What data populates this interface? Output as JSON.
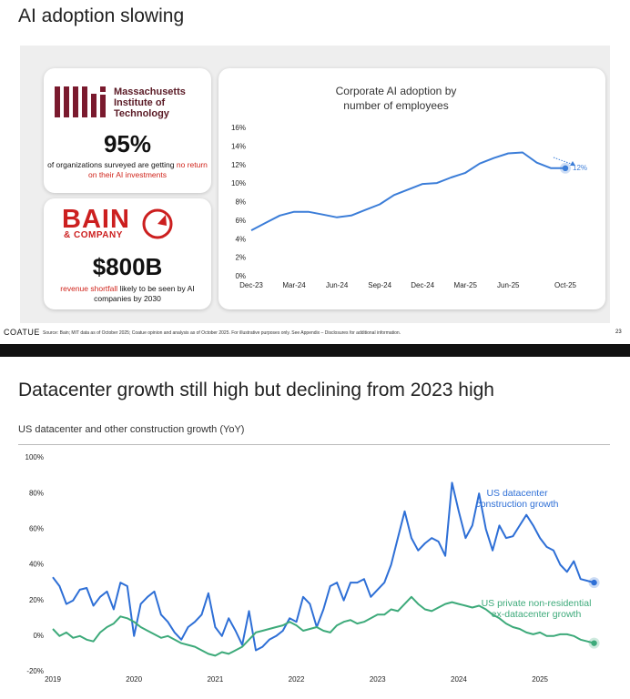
{
  "slide1": {
    "title": "AI adoption slowing",
    "mit": {
      "logo_text": "Massachusetts Institute of Technology",
      "stat": "95%",
      "note": "of organizations surveyed are getting ",
      "note_highlight": "no return on their AI investments"
    },
    "bain": {
      "logo_text": "BAIN",
      "logo_sub": "& COMPANY",
      "stat": "$800B",
      "note_highlight": "revenue shortfall",
      "note": " likely to be seen by AI companies by 2030"
    },
    "footer": {
      "brand": "COATUE",
      "source": "Source: Bain; MIT data as of October 2025; Coatue opinion and analysis as of October 2025. For illustrative purposes only. See Appendix – Disclosures for additional information.",
      "page": "23"
    }
  },
  "slide2": {
    "title": "Datacenter growth still high but declining from 2023 high",
    "subtitle": "US datacenter and other construction growth (YoY)"
  },
  "chart_data": [
    {
      "type": "line",
      "title": "Corporate AI adoption by number of employees",
      "categories": [
        "Dec-23",
        null,
        null,
        "Mar-24",
        null,
        null,
        "Jun-24",
        null,
        null,
        "Sep-24",
        null,
        null,
        "Dec-24",
        null,
        null,
        "Mar-25",
        null,
        null,
        "Jun-25",
        null,
        null,
        null,
        "Oct-25"
      ],
      "values": [
        5.0,
        5.8,
        6.6,
        7.0,
        7.0,
        6.7,
        6.4,
        6.6,
        7.2,
        7.8,
        8.8,
        9.4,
        10.0,
        10.1,
        10.7,
        11.2,
        12.2,
        12.8,
        13.3,
        13.4,
        12.3,
        11.7,
        11.7
      ],
      "value_labels": [
        null,
        null,
        null,
        null,
        null,
        null,
        null,
        null,
        null,
        null,
        null,
        null,
        null,
        null,
        null,
        null,
        null,
        null,
        null,
        null,
        null,
        null,
        "12%"
      ],
      "color": "#3b7dd8",
      "ylim": [
        0,
        16
      ],
      "yticks": [
        {
          "value": 0,
          "label": "0%"
        },
        {
          "value": 2,
          "label": "2%"
        },
        {
          "value": 4,
          "label": "4%"
        },
        {
          "value": 6,
          "label": "6%"
        },
        {
          "value": 8,
          "label": "8%"
        },
        {
          "value": 10,
          "label": "10%"
        },
        {
          "value": 12,
          "label": "12%"
        },
        {
          "value": 14,
          "label": "14%"
        },
        {
          "value": 16,
          "label": "16%"
        }
      ],
      "grid": false
    },
    {
      "type": "line",
      "x": [
        2019.0,
        2019.0833,
        2019.1667,
        2019.25,
        2019.3333,
        2019.4167,
        2019.5,
        2019.5833,
        2019.6667,
        2019.75,
        2019.8333,
        2019.9167,
        2020.0,
        2020.0833,
        2020.1667,
        2020.25,
        2020.3333,
        2020.4167,
        2020.5,
        2020.5833,
        2020.6667,
        2020.75,
        2020.8333,
        2020.9167,
        2021.0,
        2021.0833,
        2021.1667,
        2021.25,
        2021.3333,
        2021.4167,
        2021.5,
        2021.5833,
        2021.6667,
        2021.75,
        2021.8333,
        2021.9167,
        2022.0,
        2022.0833,
        2022.1667,
        2022.25,
        2022.3333,
        2022.4167,
        2022.5,
        2022.5833,
        2022.6667,
        2022.75,
        2022.8333,
        2022.9167,
        2023.0,
        2023.0833,
        2023.1667,
        2023.25,
        2023.3333,
        2023.4167,
        2023.5,
        2023.5833,
        2023.6667,
        2023.75,
        2023.8333,
        2023.9167,
        2024.0,
        2024.0833,
        2024.1667,
        2024.25,
        2024.3333,
        2024.4167,
        2024.5,
        2024.5833,
        2024.6667,
        2024.75,
        2024.8333,
        2024.9167,
        2025.0,
        2025.0833,
        2025.1667,
        2025.25,
        2025.3333,
        2025.4167,
        2025.5,
        2025.5833,
        2025.6667
      ],
      "series": [
        {
          "name": "US datacenter construction growth",
          "color": "#2e6fd6",
          "values": [
            33,
            28,
            18,
            20,
            26,
            27,
            17,
            22,
            25,
            15,
            30,
            28,
            0,
            18,
            22,
            25,
            12,
            8,
            2,
            -2,
            5,
            8,
            12,
            24,
            5,
            0,
            10,
            3,
            -5,
            14,
            -8,
            -6,
            -2,
            0,
            3,
            10,
            8,
            22,
            18,
            5,
            15,
            28,
            30,
            20,
            30,
            30,
            32,
            22,
            26,
            30,
            40,
            55,
            70,
            55,
            48,
            52,
            55,
            53,
            45,
            86,
            70,
            55,
            62,
            80,
            60,
            48,
            62,
            55,
            56,
            62,
            68,
            62,
            55,
            50,
            48,
            40,
            36,
            42,
            32,
            31,
            30
          ]
        },
        {
          "name": "US private non-residential ex-datacenter growth",
          "color": "#3daa7a",
          "values": [
            4,
            0,
            2,
            -1,
            0,
            -2,
            -3,
            2,
            5,
            7,
            11,
            10,
            8,
            5,
            3,
            1,
            -1,
            0,
            -2,
            -4,
            -5,
            -6,
            -8,
            -10,
            -11,
            -9,
            -10,
            -8,
            -6,
            -2,
            2,
            3,
            4,
            5,
            6,
            8,
            6,
            3,
            4,
            5,
            3,
            2,
            6,
            8,
            9,
            7,
            8,
            10,
            12,
            12,
            15,
            14,
            18,
            22,
            18,
            15,
            14,
            16,
            18,
            19,
            18,
            17,
            16,
            17,
            15,
            12,
            10,
            7,
            5,
            4,
            2,
            1,
            2,
            0,
            0,
            1,
            1,
            0,
            -2,
            -3,
            -4
          ]
        }
      ],
      "xlim": [
        2019,
        2025.75
      ],
      "xticks": [
        2019,
        2020,
        2021,
        2022,
        2023,
        2024,
        2025
      ],
      "ylim": [
        -20,
        100
      ],
      "yticks": [
        {
          "value": -20,
          "label": "-20%"
        },
        {
          "value": 0,
          "label": "0%"
        },
        {
          "value": 20,
          "label": "20%"
        },
        {
          "value": 40,
          "label": "40%"
        },
        {
          "value": 60,
          "label": "60%"
        },
        {
          "value": 80,
          "label": "80%"
        },
        {
          "value": 100,
          "label": "100%"
        }
      ],
      "grid": false
    }
  ]
}
